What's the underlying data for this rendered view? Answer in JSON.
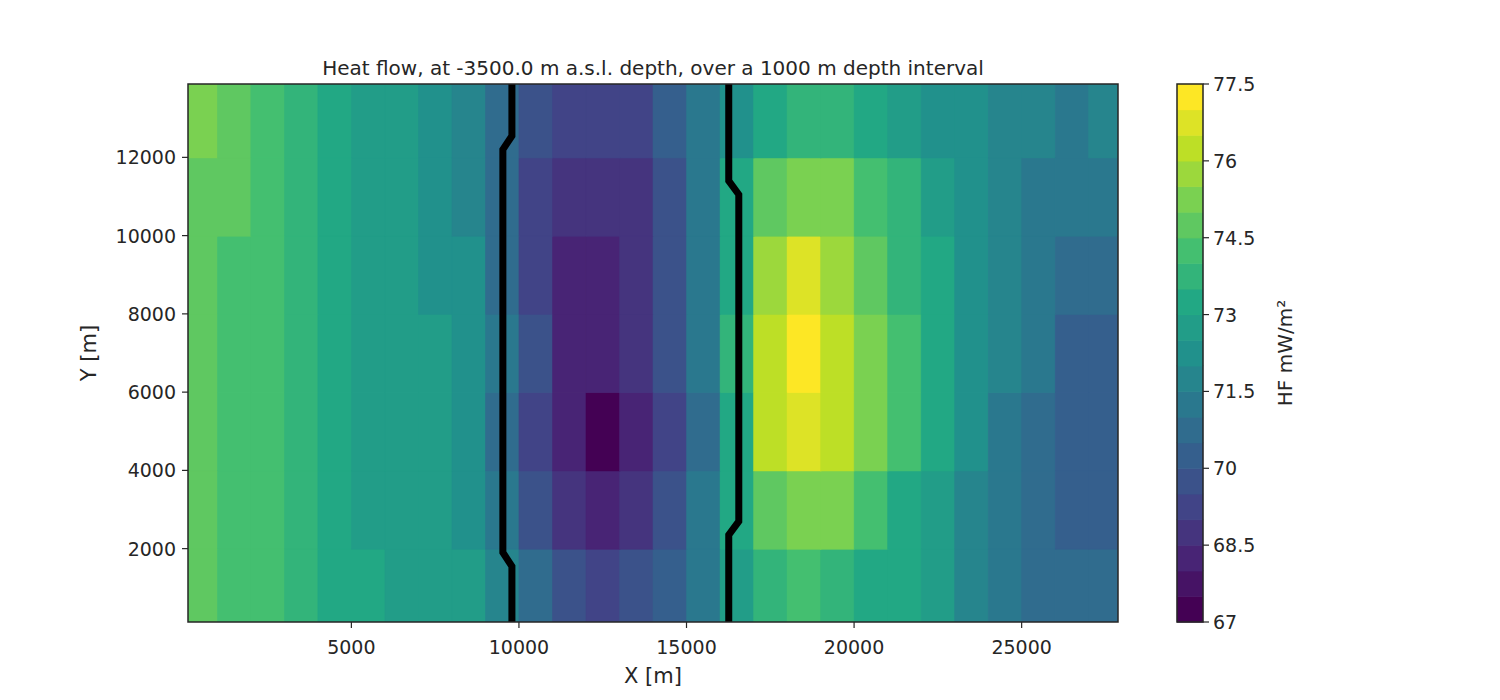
{
  "chart_data": {
    "type": "contour",
    "title": "Heat flow, at -3500.0 m a.s.l. depth, over a 1000 m depth interval",
    "x_label": "X [m]",
    "y_label": "Y [m]",
    "xlim": [
      125,
      27875
    ],
    "ylim": [
      125,
      13875
    ],
    "xticks": [
      5000,
      10000,
      15000,
      20000,
      25000
    ],
    "yticks": [
      2000,
      4000,
      6000,
      8000,
      10000,
      12000
    ],
    "x": [
      500,
      1500,
      2500,
      3500,
      4500,
      5500,
      6500,
      7500,
      8500,
      9500,
      10500,
      11500,
      12500,
      13500,
      14500,
      15500,
      16500,
      17500,
      18500,
      19500,
      20500,
      21500,
      22500,
      23500,
      24500,
      25500,
      26500,
      27500
    ],
    "y": [
      1000,
      3000,
      5000,
      7000,
      9000,
      11000,
      13000
    ],
    "cells": [
      [
        74.6,
        74.3,
        74.0,
        73.6,
        73.2,
        73.0,
        72.9,
        72.8,
        72.5,
        71.6,
        70.6,
        69.8,
        69.4,
        69.6,
        70.2,
        71.2,
        72.6,
        73.6,
        74.0,
        73.8,
        73.4,
        73.0,
        72.5,
        71.8,
        71.2,
        70.8,
        70.6,
        70.6
      ],
      [
        74.7,
        74.4,
        74.0,
        73.6,
        73.2,
        72.9,
        72.9,
        72.9,
        72.4,
        71.2,
        69.8,
        68.8,
        68.4,
        68.8,
        69.6,
        71.0,
        73.0,
        74.8,
        75.4,
        75.0,
        74.2,
        73.4,
        72.6,
        71.8,
        71.2,
        70.7,
        70.2,
        70.4
      ],
      [
        74.8,
        74.4,
        74.0,
        73.5,
        73.0,
        72.7,
        72.6,
        72.6,
        72.2,
        70.9,
        69.3,
        68.0,
        67.4,
        68.0,
        69.2,
        70.8,
        73.4,
        76.0,
        76.8,
        76.0,
        75.0,
        74.0,
        73.0,
        72.0,
        71.4,
        70.8,
        70.0,
        70.2
      ],
      [
        74.8,
        74.4,
        74.0,
        73.5,
        73.0,
        72.8,
        72.6,
        72.5,
        72.2,
        71.0,
        69.5,
        68.4,
        68.2,
        68.6,
        69.5,
        71.0,
        73.5,
        76.2,
        77.2,
        76.2,
        75.0,
        74.0,
        73.0,
        72.0,
        71.5,
        71.0,
        70.2,
        70.4
      ],
      [
        74.8,
        74.4,
        74.0,
        73.6,
        73.1,
        72.8,
        72.6,
        72.4,
        72.0,
        70.8,
        69.3,
        68.3,
        68.2,
        68.6,
        69.5,
        71.0,
        73.4,
        75.8,
        76.6,
        75.8,
        74.8,
        73.9,
        73.0,
        72.1,
        71.6,
        71.1,
        70.5,
        70.6
      ],
      [
        74.9,
        74.5,
        74.0,
        73.6,
        73.1,
        72.8,
        72.5,
        72.3,
        71.8,
        70.6,
        69.4,
        68.7,
        68.5,
        68.9,
        69.7,
        71.2,
        73.0,
        74.8,
        75.4,
        75.0,
        74.2,
        73.5,
        72.8,
        72.1,
        71.7,
        71.3,
        71.0,
        71.2
      ],
      [
        75.4,
        74.8,
        74.2,
        73.7,
        73.2,
        72.8,
        72.5,
        72.2,
        71.6,
        70.6,
        69.7,
        69.2,
        69.1,
        69.4,
        70.0,
        71.0,
        72.4,
        73.4,
        73.8,
        73.6,
        73.2,
        72.8,
        72.4,
        72.0,
        71.7,
        71.5,
        71.4,
        71.6
      ]
    ],
    "faults": [
      {
        "x": [
          9790,
          9790,
          9520,
          9520,
          9790,
          9790
        ],
        "y": [
          125,
          1550,
          1900,
          12200,
          12550,
          13875
        ]
      },
      {
        "x": [
          16260,
          16260,
          16560,
          16560,
          16260,
          16260
        ],
        "y": [
          125,
          2350,
          2700,
          11050,
          11400,
          13875
        ]
      }
    ],
    "colorbar": {
      "label": "HF mW/m²",
      "range": [
        67,
        77.5
      ],
      "ticks": [
        67,
        68.5,
        70,
        71.5,
        73,
        74.5,
        76,
        77.5
      ],
      "levels": [
        67,
        67.5,
        68,
        68.5,
        69,
        69.5,
        70,
        70.5,
        71,
        71.5,
        72,
        72.5,
        73,
        73.5,
        74,
        74.5,
        75,
        75.5,
        76,
        76.5,
        77,
        77.5
      ]
    }
  }
}
